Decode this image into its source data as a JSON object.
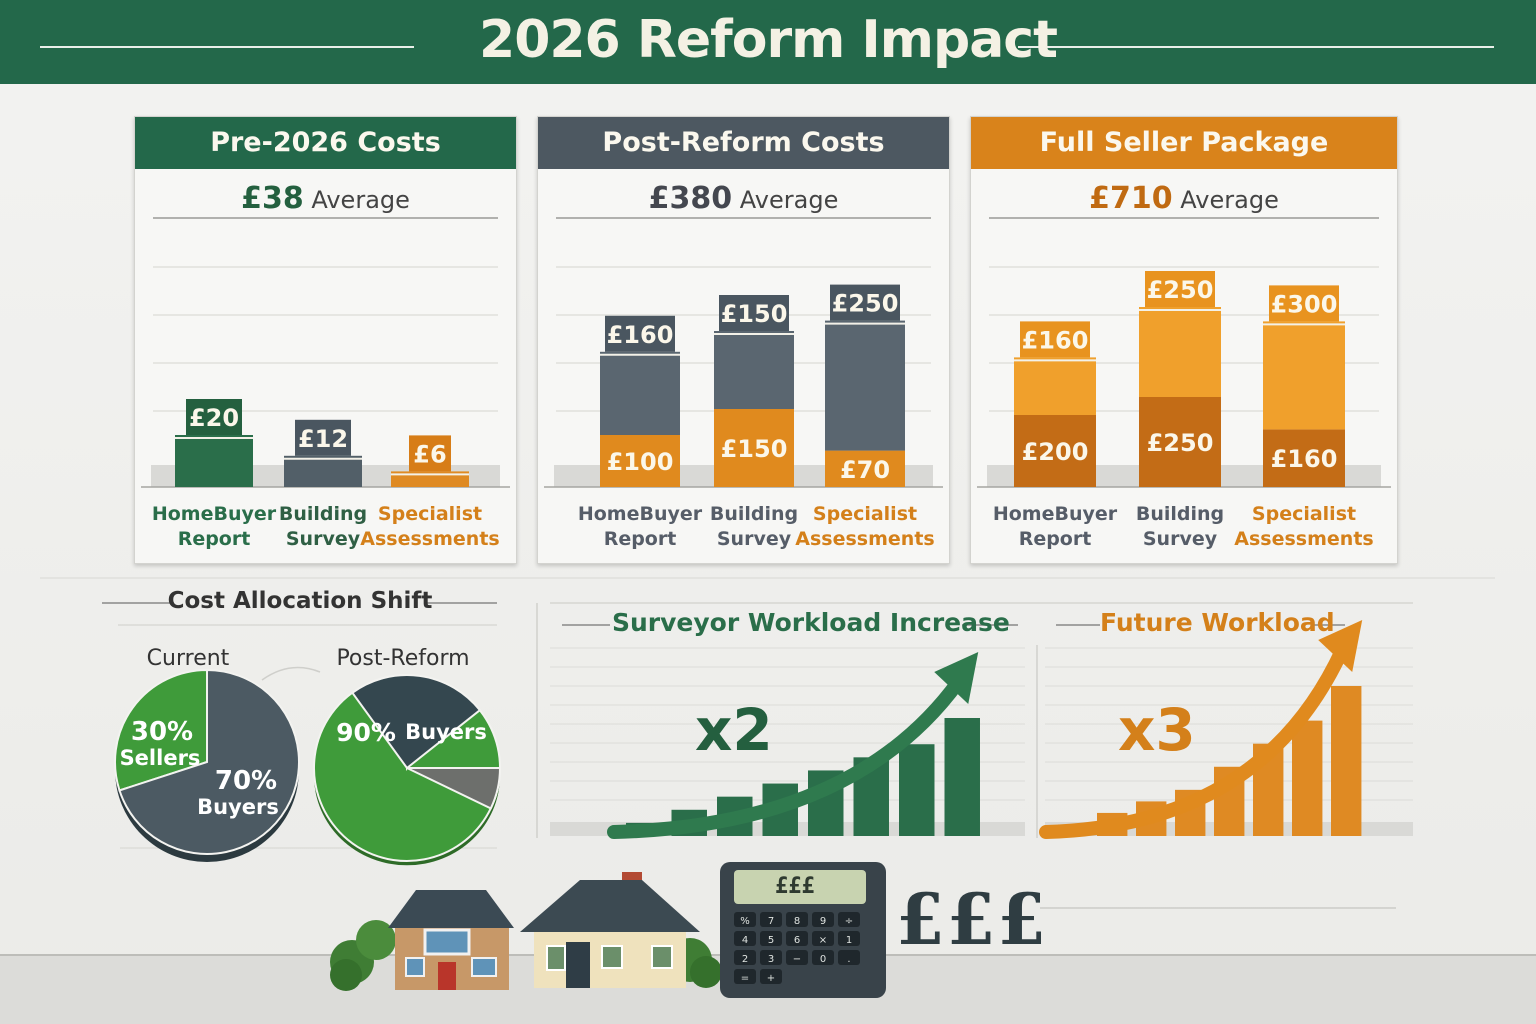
{
  "title": "2026 Reform Impact",
  "colors": {
    "green": "#2a6e4a",
    "slate": "#4c5a63",
    "orange": "#e08a1e",
    "bright_green": "#3f9b3a"
  },
  "chart_data": [
    {
      "type": "bar",
      "title": "Pre-2026 Costs",
      "subtitle_amount": "£38",
      "subtitle_label": "Average",
      "categories": [
        "HomeBuyer Report",
        "Building Survey",
        "Specialist Assessments"
      ],
      "series": [
        {
          "values": [
            20,
            12,
            6
          ],
          "labels": [
            "£20",
            "£12",
            "£6"
          ]
        }
      ]
    },
    {
      "type": "bar",
      "title": "Post-Reform Costs",
      "subtitle_amount": "£380",
      "subtitle_label": "Average",
      "stacked": true,
      "categories": [
        "HomeBuyer Report",
        "Building Survey",
        "Specialist Assessments"
      ],
      "series": [
        {
          "values": [
            100,
            150,
            70
          ],
          "labels": [
            "£100",
            "£150",
            "£70"
          ]
        },
        {
          "values": [
            160,
            150,
            250
          ],
          "labels": [
            "£160",
            "£150",
            "£250"
          ]
        }
      ]
    },
    {
      "type": "bar",
      "title": "Full Seller Package",
      "subtitle_amount": "£710",
      "subtitle_label": "Average",
      "stacked": true,
      "categories": [
        "HomeBuyer Report",
        "Building Survey",
        "Specialist Assessments"
      ],
      "series": [
        {
          "values": [
            200,
            250,
            160
          ],
          "labels": [
            "£200",
            "£250",
            "£160"
          ]
        },
        {
          "values": [
            160,
            250,
            300
          ],
          "labels": [
            "£160",
            "£250",
            "£300"
          ]
        }
      ]
    },
    {
      "type": "pie",
      "title": "Cost Allocation Shift",
      "name": "Current",
      "slices": [
        {
          "label": "Sellers",
          "value": 30,
          "value_label": "30%"
        },
        {
          "label": "Buyers",
          "value": 70,
          "value_label": "70%"
        }
      ]
    },
    {
      "type": "pie",
      "name": "Post-Reform",
      "slices": [
        {
          "label": "",
          "value": 90,
          "value_label": "90%"
        },
        {
          "label": "Buyers",
          "value": 0,
          "value_label": ""
        }
      ],
      "legend_label": "Buyers"
    },
    {
      "type": "bar",
      "title": "Surveyor Workload Increase",
      "multiplier": "x2",
      "trend": "rising",
      "series": [
        {
          "values": [
            1,
            2,
            3,
            4,
            5,
            6,
            7,
            9
          ]
        }
      ]
    },
    {
      "type": "bar",
      "title": "Future Workload",
      "multiplier": "x3",
      "trend": "rising",
      "series": [
        {
          "values": [
            1,
            2,
            3,
            4,
            6,
            8,
            10,
            13
          ]
        }
      ]
    }
  ],
  "footer": {
    "calculator_screen": "£££",
    "currency_text": "£££"
  },
  "icons": [
    "house-icon",
    "house-icon",
    "calculator-icon",
    "tree-icon",
    "arrow-up-icon"
  ]
}
